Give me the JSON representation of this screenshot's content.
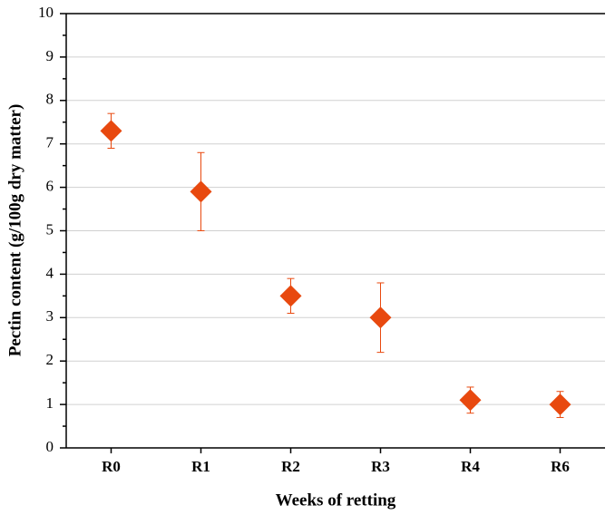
{
  "chart_data": {
    "type": "errorbar",
    "x_label": "Weeks of retting",
    "y_label": "Pectin content (g/100g dry matter)",
    "categories": [
      "R0",
      "R1",
      "R2",
      "R3",
      "R4",
      "R6"
    ],
    "values": [
      7.3,
      5.9,
      3.5,
      3.0,
      1.1,
      1.0
    ],
    "errors": [
      0.4,
      0.9,
      0.4,
      0.8,
      0.3,
      0.3
    ],
    "color": "#e8490f",
    "ylim": [
      0,
      10
    ],
    "yticks": [
      0,
      1,
      2,
      3,
      4,
      5,
      6,
      7,
      8,
      9,
      10
    ],
    "grid": true
  }
}
